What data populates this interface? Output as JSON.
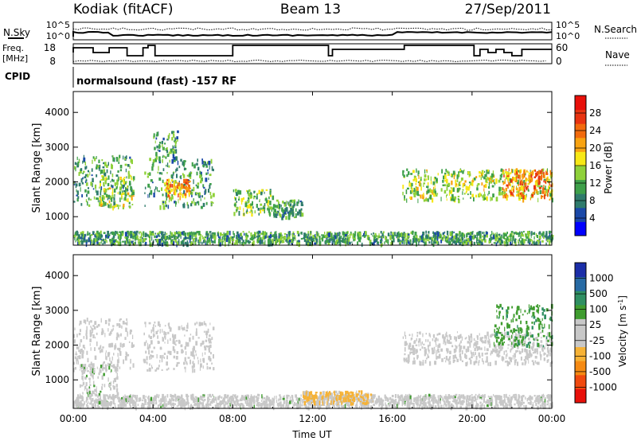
{
  "header": {
    "station": "Kodiak (fitACF)",
    "beam": "Beam 13",
    "date": "27/Sep/2011"
  },
  "params": {
    "nsky_label": "N.Sky",
    "nsearch_label": "N.Search",
    "freq_label": "Freq.",
    "freq_unit": "[MHz]",
    "nave_label": "Nave",
    "cpid_label": "CPID",
    "cpid_text": "normalsound (fast) -157 RF",
    "noise_left_ticks": [
      "10^5",
      "10^0"
    ],
    "noise_right_ticks": [
      "10^5",
      "10^0"
    ],
    "freq_ticks": [
      "18",
      "8"
    ],
    "nave_ticks": [
      "60",
      "0"
    ]
  },
  "colors": {
    "power": [
      "#0000ff",
      "#1a48a8",
      "#2f7b6c",
      "#3ea04a",
      "#8fd13a",
      "#f7e816",
      "#f8a311",
      "#f26a0d",
      "#e83311",
      "#e8100a"
    ],
    "velocity": [
      "#e8100a",
      "#f04a0f",
      "#f58a13",
      "#f6b236",
      "#c8c8c8",
      "#c8c8c8",
      "#3f9c2f",
      "#2f8f62",
      "#276aa4",
      "#1b2ea8"
    ]
  },
  "chart_data": [
    {
      "type": "heatmap",
      "title": "",
      "xlabel": "",
      "ylabel": "Slant Range [km]",
      "xlim": [
        0,
        24
      ],
      "ylim": [
        180,
        4600
      ],
      "x_ticks": [
        0,
        4,
        8,
        12,
        16,
        20,
        24
      ],
      "x_tick_labels": [
        "00:00",
        "04:00",
        "08:00",
        "12:00",
        "16:00",
        "20:00",
        "00:00"
      ],
      "y_ticks": [
        1000,
        2000,
        3000,
        4000
      ],
      "y_tick_labels": [
        "1000",
        "2000",
        "3000",
        "4000"
      ],
      "colorbar": {
        "label": "Power [dB]",
        "tick_labels": [
          "4",
          "8",
          "12",
          "16",
          "20",
          "24",
          "28"
        ],
        "range": [
          0,
          30
        ]
      },
      "echo_regions": [
        {
          "t": [
            0.0,
            3.0
          ],
          "range": [
            1300,
            2800
          ],
          "power": 10
        },
        {
          "t": [
            1.3,
            3.0
          ],
          "range": [
            1300,
            2200
          ],
          "power": 14
        },
        {
          "t": [
            3.5,
            7.0
          ],
          "range": [
            1300,
            2700
          ],
          "power": 10
        },
        {
          "t": [
            4.5,
            5.8
          ],
          "range": [
            1600,
            2100
          ],
          "power": 20
        },
        {
          "t": [
            4.0,
            5.2
          ],
          "range": [
            2700,
            3500
          ],
          "power": 10
        },
        {
          "t": [
            0.0,
            24.0
          ],
          "range": [
            250,
            600
          ],
          "power": 10
        },
        {
          "t": [
            8.0,
            10.0
          ],
          "range": [
            1100,
            1800
          ],
          "power": 12
        },
        {
          "t": [
            10.0,
            11.5
          ],
          "range": [
            1000,
            1500
          ],
          "power": 10
        },
        {
          "t": [
            16.5,
            24.0
          ],
          "range": [
            1500,
            2400
          ],
          "power": 14
        },
        {
          "t": [
            21.5,
            24.0
          ],
          "range": [
            1600,
            2400
          ],
          "power": 22
        }
      ]
    },
    {
      "type": "heatmap",
      "title": "",
      "xlabel": "Time UT",
      "ylabel": "Slant Range [km]",
      "xlim": [
        0,
        24
      ],
      "ylim": [
        180,
        4600
      ],
      "x_ticks": [
        0,
        4,
        8,
        12,
        16,
        20,
        24
      ],
      "x_tick_labels": [
        "00:00",
        "04:00",
        "08:00",
        "12:00",
        "16:00",
        "20:00",
        "00:00"
      ],
      "y_ticks": [
        1000,
        2000,
        3000,
        4000
      ],
      "y_tick_labels": [
        "1000",
        "2000",
        "3000",
        "4000"
      ],
      "colorbar": {
        "label": "Velocity [m s-1]",
        "tick_labels": [
          "-1000",
          "-500",
          "-100",
          "-25",
          "25",
          "100",
          "500",
          "1000"
        ],
        "range": [
          -1200,
          1200
        ]
      },
      "echo_regions": [
        {
          "t": [
            0.0,
            3.0
          ],
          "range": [
            1300,
            2800
          ],
          "velocity": 0
        },
        {
          "t": [
            0.3,
            2.2
          ],
          "range": [
            600,
            1500
          ],
          "velocity": 150
        },
        {
          "t": [
            3.5,
            7.0
          ],
          "range": [
            1300,
            2700
          ],
          "velocity": 0
        },
        {
          "t": [
            0.0,
            24.0
          ],
          "range": [
            250,
            600
          ],
          "velocity": 100
        },
        {
          "t": [
            11.5,
            15.0
          ],
          "range": [
            350,
            700
          ],
          "velocity": -300
        },
        {
          "t": [
            16.5,
            24.0
          ],
          "range": [
            1500,
            2400
          ],
          "velocity": 0
        },
        {
          "t": [
            21.0,
            24.0
          ],
          "range": [
            2000,
            3200
          ],
          "velocity": 400
        }
      ]
    }
  ]
}
